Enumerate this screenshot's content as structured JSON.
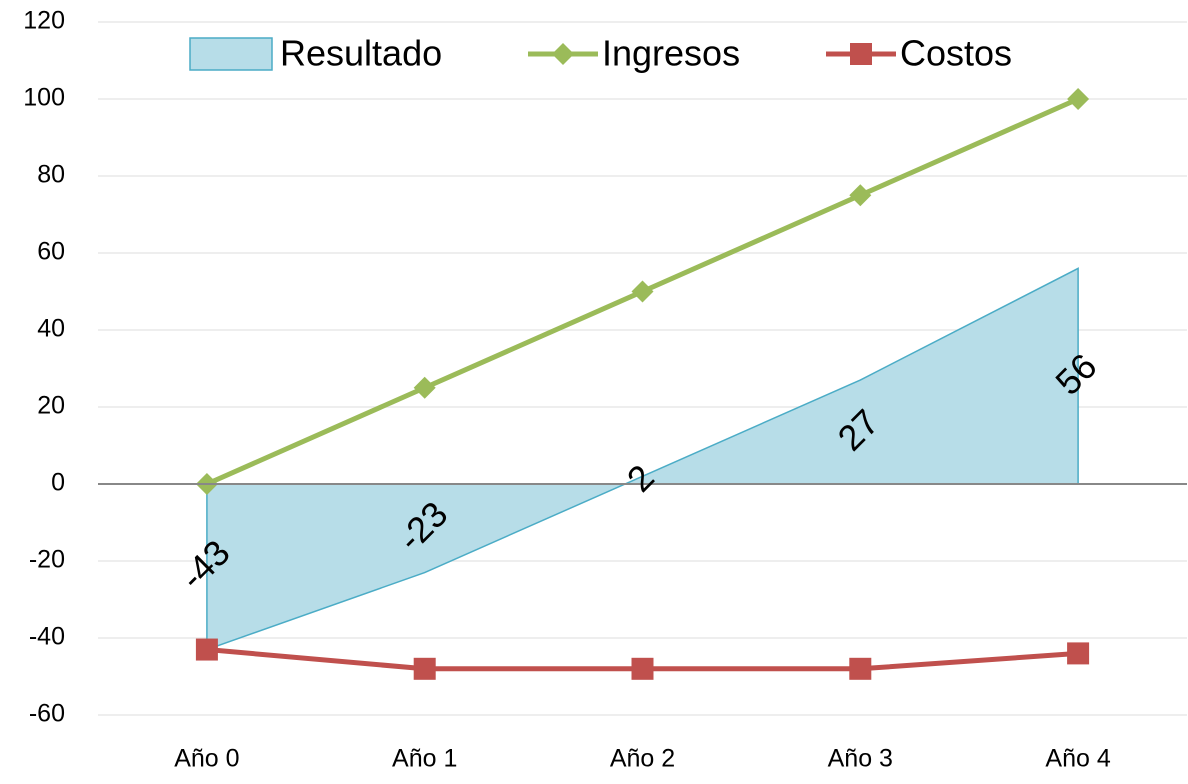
{
  "chart_data": {
    "type": "line",
    "categories": [
      "Año 0",
      "Año 1",
      "Año 2",
      "Año 3",
      "Año 4"
    ],
    "series": [
      {
        "name": "Resultado",
        "type": "area",
        "color": "#b7dde8",
        "stroke": "#4bacc6",
        "values": [
          -43,
          -23,
          2,
          27,
          56
        ]
      },
      {
        "name": "Ingresos",
        "type": "line",
        "marker": "diamond",
        "color": "#9bbb59",
        "values": [
          0,
          25,
          50,
          75,
          100
        ]
      },
      {
        "name": "Costos",
        "type": "line",
        "marker": "square",
        "color": "#c0504d",
        "values": [
          -43,
          -48,
          -48,
          -48,
          -44
        ]
      }
    ],
    "data_labels_series": 0,
    "ylim": [
      -60,
      120
    ],
    "yticks": [
      -60,
      -40,
      -20,
      0,
      20,
      40,
      60,
      80,
      100,
      120
    ],
    "grid": true,
    "legend": "top"
  }
}
